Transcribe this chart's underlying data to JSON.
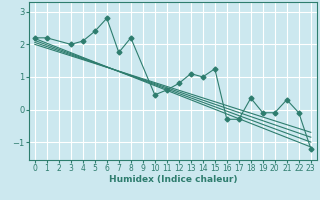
{
  "xlabel": "Humidex (Indice chaleur)",
  "bg_color": "#cce8ef",
  "line_color": "#2e7d6e",
  "grid_color": "#ffffff",
  "scatter_x": [
    0,
    1,
    3,
    4,
    5,
    6,
    7,
    8,
    10,
    11,
    12,
    13,
    14,
    15,
    16,
    17,
    18,
    19,
    20,
    21,
    22,
    23
  ],
  "scatter_y": [
    2.2,
    2.2,
    2.0,
    2.1,
    2.4,
    2.8,
    1.75,
    2.2,
    0.45,
    0.6,
    0.8,
    1.1,
    1.0,
    1.25,
    -0.3,
    -0.3,
    0.35,
    -0.1,
    -0.1,
    0.3,
    -0.1,
    -1.2
  ],
  "trend_lines": [
    {
      "x": [
        0,
        23
      ],
      "y": [
        2.18,
        -1.15
      ]
    },
    {
      "x": [
        0,
        23
      ],
      "y": [
        2.12,
        -1.0
      ]
    },
    {
      "x": [
        0,
        23
      ],
      "y": [
        2.06,
        -0.85
      ]
    },
    {
      "x": [
        0,
        23
      ],
      "y": [
        2.0,
        -0.7
      ]
    }
  ],
  "xlim": [
    -0.5,
    23.5
  ],
  "ylim": [
    -1.55,
    3.3
  ],
  "yticks": [
    -1,
    0,
    1,
    2,
    3
  ],
  "xticks": [
    0,
    1,
    2,
    3,
    4,
    5,
    6,
    7,
    8,
    9,
    10,
    11,
    12,
    13,
    14,
    15,
    16,
    17,
    18,
    19,
    20,
    21,
    22,
    23
  ],
  "marker": "D",
  "marker_size": 2.5,
  "line_width": 0.8,
  "tick_fontsize": 5.5,
  "xlabel_fontsize": 6.5
}
